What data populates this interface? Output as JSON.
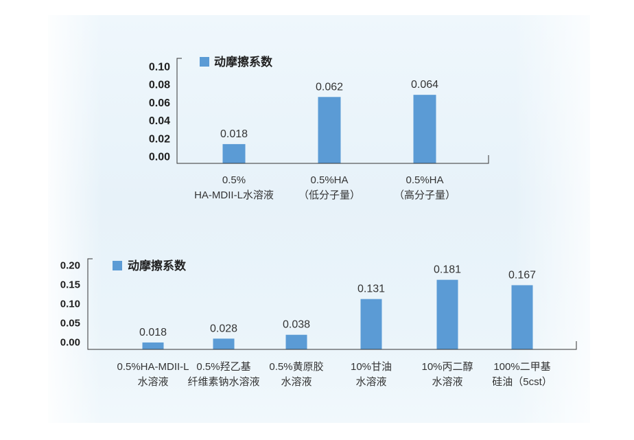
{
  "colors": {
    "bar": "#5b9bd5",
    "axis": "#333333"
  },
  "chart_data": [
    {
      "type": "bar",
      "categories": [
        [
          "0.5%",
          "HA-MDII-L水溶液"
        ],
        [
          "0.5%HA",
          "（低分子量）"
        ],
        [
          "0.5%HA",
          "（高分子量）"
        ]
      ],
      "series": [
        {
          "name": "动摩擦系数",
          "values": [
            0.018,
            0.062,
            0.064
          ]
        }
      ],
      "yticks": [
        "0.00",
        "0.02",
        "0.04",
        "0.06",
        "0.08",
        "0.10"
      ],
      "ylim": [
        0,
        0.1
      ],
      "grid": false,
      "legend_position": "top-left"
    },
    {
      "type": "bar",
      "categories": [
        [
          "0.5%HA-MDII-L",
          "水溶液"
        ],
        [
          "0.5%羟乙基",
          "纤维素钠水溶液"
        ],
        [
          "0.5%黄原胶",
          "水溶液"
        ],
        [
          "10%甘油",
          "水溶液"
        ],
        [
          "10%丙二醇",
          "水溶液"
        ],
        [
          "100%二甲基",
          "硅油（5cst）"
        ]
      ],
      "series": [
        {
          "name": "动摩擦系数",
          "values": [
            0.018,
            0.028,
            0.038,
            0.131,
            0.181,
            0.167
          ]
        }
      ],
      "yticks": [
        "0.00",
        "0.05",
        "0.10",
        "0.15",
        "0.20"
      ],
      "ylim": [
        0,
        0.2
      ],
      "grid": false,
      "legend_position": "top-left"
    }
  ]
}
